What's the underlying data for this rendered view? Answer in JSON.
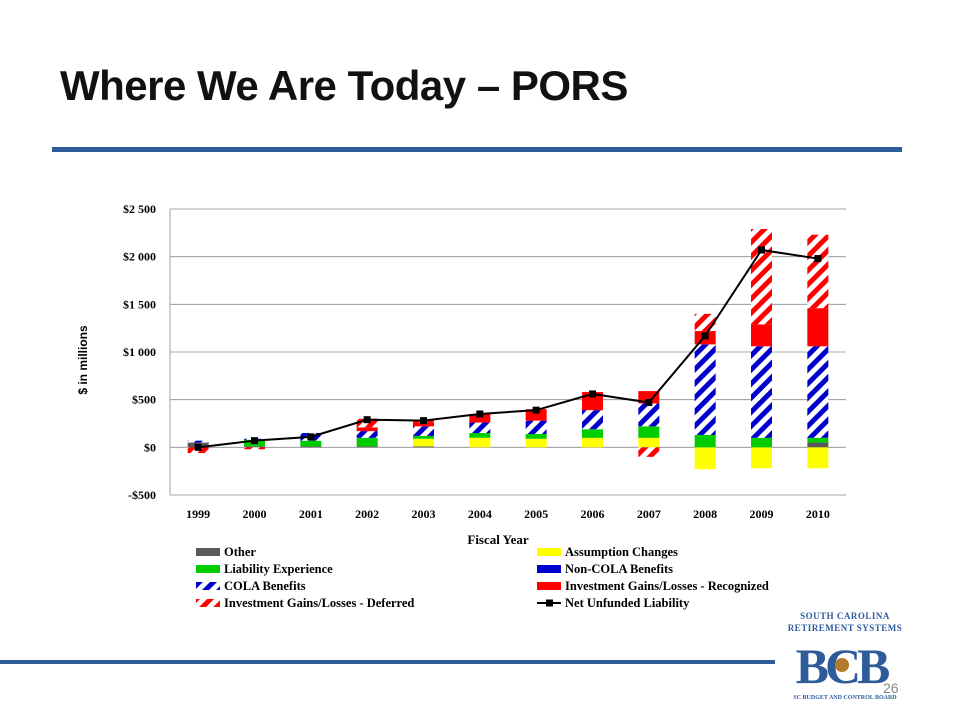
{
  "slide": {
    "title": "Where We Are Today – PORS",
    "page_number": "26"
  },
  "logo": {
    "line1": "SOUTH CAROLINA",
    "line2": "RETIREMENT SYSTEMS",
    "monogram": "BCB",
    "line3": "SC BUDGET AND CONTROL BOARD",
    "colors": {
      "primary": "#2e5b9a",
      "accent": "#b07a2a"
    }
  },
  "chart_data": {
    "type": "bar",
    "stacked": true,
    "title": "",
    "xlabel": "Fiscal Year",
    "ylabel": "$ in millions",
    "ylim": [
      -500,
      2500
    ],
    "yticks": [
      -500,
      0,
      500,
      1000,
      1500,
      2000,
      2500
    ],
    "ytick_labels": [
      "-$500",
      "$0",
      "$500",
      "$1 000",
      "$1 500",
      "$2 000",
      "$2 500"
    ],
    "grid": "horizontal",
    "legend_position": "bottom",
    "categories": [
      "1999",
      "2000",
      "2001",
      "2002",
      "2003",
      "2004",
      "2005",
      "2006",
      "2007",
      "2008",
      "2009",
      "2010"
    ],
    "series": [
      {
        "name": "Other",
        "pattern": "solid",
        "color": "#595959",
        "values": [
          50,
          10,
          10,
          10,
          10,
          0,
          0,
          0,
          0,
          0,
          0,
          50
        ]
      },
      {
        "name": "Assumption Changes",
        "pattern": "solid",
        "color": "#ffff00",
        "values": [
          0,
          0,
          0,
          0,
          80,
          100,
          90,
          100,
          100,
          -230,
          -220,
          -220
        ]
      },
      {
        "name": "Liability Experience",
        "pattern": "solid",
        "color": "#00cc00",
        "values": [
          0,
          70,
          60,
          90,
          30,
          50,
          50,
          90,
          120,
          130,
          100,
          50
        ]
      },
      {
        "name": "Non-COLA Benefits",
        "pattern": "solid",
        "color": "#0000cc",
        "values": [
          0,
          0,
          0,
          0,
          0,
          0,
          0,
          0,
          0,
          0,
          0,
          0
        ]
      },
      {
        "name": "COLA Benefits",
        "pattern": "blue-stripe",
        "color": "#0000cc",
        "values": [
          20,
          10,
          80,
          70,
          100,
          110,
          140,
          200,
          240,
          950,
          960,
          960
        ]
      },
      {
        "name": "Investment Gains/Losses - Recognized",
        "pattern": "solid",
        "color": "#ff0000",
        "values": [
          0,
          0,
          0,
          40,
          40,
          90,
          120,
          190,
          130,
          140,
          230,
          400
        ]
      },
      {
        "name": "Investment Gains/Losses - Deferred",
        "pattern": "red-stripe",
        "color": "#ff0000",
        "values": [
          -60,
          -20,
          0,
          90,
          30,
          0,
          0,
          0,
          -100,
          180,
          1000,
          770
        ]
      }
    ],
    "line": {
      "name": "Net Unfunded Liability",
      "color": "#000000",
      "values": [
        0,
        70,
        110,
        290,
        280,
        350,
        390,
        560,
        470,
        1170,
        2070,
        1980
      ]
    }
  }
}
